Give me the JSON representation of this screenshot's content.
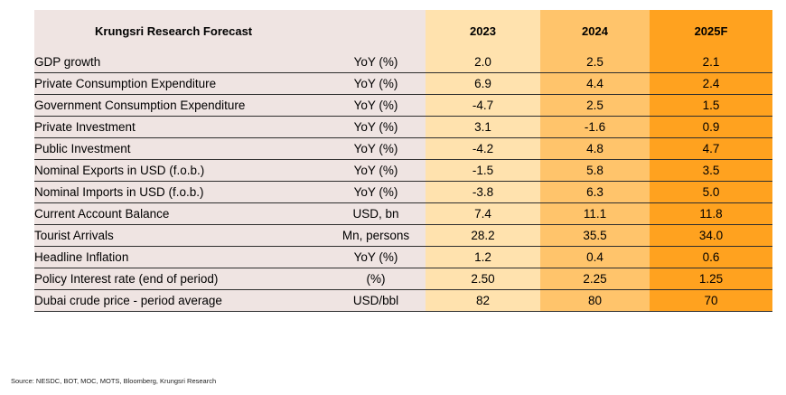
{
  "table": {
    "title": "Krungsri Research Forecast",
    "unit_header": "",
    "columns": [
      "2023",
      "2024",
      "2025F"
    ],
    "rows": [
      {
        "label": "GDP growth",
        "unit": "YoY (%)",
        "values": [
          "2.0",
          "2.5",
          "2.1"
        ]
      },
      {
        "label": "Private Consumption Expenditure",
        "unit": "YoY (%)",
        "values": [
          "6.9",
          "4.4",
          "2.4"
        ]
      },
      {
        "label": "Government Consumption Expenditure",
        "unit": "YoY (%)",
        "values": [
          "-4.7",
          "2.5",
          "1.5"
        ]
      },
      {
        "label": "Private Investment",
        "unit": "YoY (%)",
        "values": [
          "3.1",
          "-1.6",
          "0.9"
        ]
      },
      {
        "label": "Public Investment",
        "unit": "YoY (%)",
        "values": [
          "-4.2",
          "4.8",
          "4.7"
        ]
      },
      {
        "label": "Nominal Exports in USD (f.o.b.)",
        "unit": "YoY (%)",
        "values": [
          "-1.5",
          "5.8",
          "3.5"
        ]
      },
      {
        "label": "Nominal Imports in USD (f.o.b.)",
        "unit": "YoY (%)",
        "values": [
          "-3.8",
          "6.3",
          "5.0"
        ]
      },
      {
        "label": "Current Account Balance",
        "unit": "USD, bn",
        "values": [
          "7.4",
          "11.1",
          "11.8"
        ]
      },
      {
        "label": "Tourist Arrivals",
        "unit": "Mn, persons",
        "values": [
          "28.2",
          "35.5",
          "34.0"
        ]
      },
      {
        "label": "Headline Inflation",
        "unit": "YoY (%)",
        "values": [
          "1.2",
          "0.4",
          "0.6"
        ]
      },
      {
        "label": "Policy Interest rate (end of period)",
        "unit": "(%)",
        "values": [
          "2.50",
          "2.25",
          "1.25"
        ]
      },
      {
        "label": "Dubai crude price - period average",
        "unit": "USD/bbl",
        "values": [
          "82",
          "80",
          "70"
        ]
      }
    ]
  },
  "source": "Source: NESDC, BOT, MOC, MOTS, Bloomberg, Krungsri Research",
  "colors": {
    "label_bg": "#efe4e2",
    "col_2023_bg": "#ffe2ae",
    "col_2024_bg": "#ffc46b",
    "col_2025_bg": "#ffa21f",
    "rule": "#2e2e2e"
  }
}
